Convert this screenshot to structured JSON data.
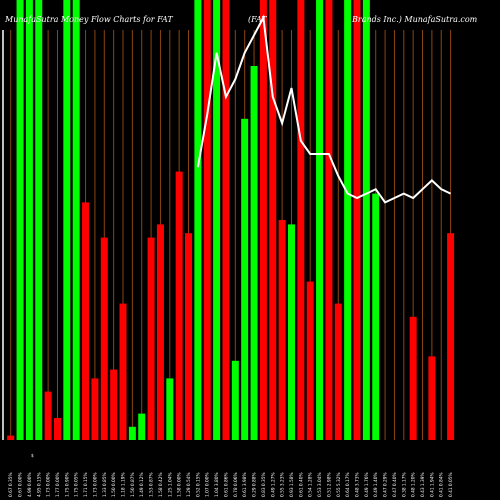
{
  "chart_data": {
    "type": "bar",
    "title_left": "MunafaSutra  Money Flow  Charts for FAT",
    "title_mid": "(FAT",
    "title_right": "Brands Inc.) MunafaSutra.com",
    "xlabel": "",
    "ylabel": "",
    "grid": "vertical brown lines between bars",
    "colors": {
      "background": "#000000",
      "up": "#00ff00",
      "down": "#ff0000",
      "price_line": "#ffffff",
      "grid": "#8b4513"
    },
    "value_scale": [
      0,
      100
    ],
    "tick_labels": [
      "0.67 0.35%",
      "0.67 0.00%",
      "4.99 0.00%",
      "4.95 0.15%",
      "1.73 0.00%",
      "1.77 0.00%",
      "1.75 0.90%",
      "1.75 0.05%",
      "1.71 0.15%",
      "1.73 0.00%",
      "1.33 0.85%",
      "1.50 0.00%",
      "1.18 1.19%",
      "1.50 0.87%",
      "1.49 0.12%",
      "1.53 0.87%",
      "1.58 0.42%",
      "1.25 1.04%",
      "1.58 0.00%",
      "1.29 0.54%",
      "0.52 0.15%",
      "1.07 0.00%",
      "1.04 3.80%",
      "0.61 0.86%",
      "0.78 0.06%",
      "0.61 3.98%",
      "0.29 0.88%",
      "0.83 0.35%",
      "0.49 1.27%",
      "0.55 3.23%",
      "0.93 1.58%",
      "0.61 0.40%",
      "0.54 1.28%",
      "0.53 3.04%",
      "0.51 2.98%",
      "0.55 5.32%",
      "0.64 0.17%",
      "0.48 3.73%",
      "0.49 1.76%",
      "0.49 1.40%",
      "0.47 0.29%",
      "0.47 0.40%",
      "0.38 1.17%",
      "0.48 1.20%",
      "0.43 1.39%",
      "0.41 1.94%",
      "0.41 0.84%",
      "0.41 0.05%"
    ],
    "series": [
      {
        "values": [
          1,
          100,
          100,
          100,
          11,
          5,
          100,
          100,
          54,
          14,
          46,
          16,
          31,
          3,
          6,
          46,
          49,
          14,
          61,
          47,
          100,
          100,
          100,
          100,
          18,
          73,
          85,
          100,
          100,
          50,
          49,
          100,
          36,
          100,
          100,
          31,
          100,
          100,
          100,
          56,
          0,
          0,
          0,
          28,
          0,
          19,
          0,
          47
        ],
        "colors": [
          "down",
          "up",
          "up",
          "up",
          "down",
          "down",
          "up",
          "up",
          "down",
          "down",
          "down",
          "down",
          "down",
          "up",
          "up",
          "down",
          "down",
          "up",
          "down",
          "down",
          "up",
          "down",
          "up",
          "down",
          "up",
          "up",
          "up",
          "down",
          "down",
          "down",
          "up",
          "down",
          "down",
          "up",
          "down",
          "down",
          "up",
          "down",
          "up",
          "up",
          "up",
          "down",
          "up",
          "down",
          "up",
          "down",
          "up",
          "down"
        ]
      }
    ],
    "price_line": {
      "values": [
        null,
        null,
        null,
        null,
        null,
        null,
        null,
        null,
        null,
        null,
        null,
        null,
        null,
        null,
        null,
        null,
        null,
        null,
        null,
        null,
        62,
        74,
        88,
        78,
        82,
        88,
        92,
        96,
        78,
        72,
        80,
        68,
        65,
        65,
        65,
        60,
        56,
        55,
        56,
        57,
        54,
        55,
        56,
        55,
        57,
        59,
        57,
        56
      ],
      "y_range": [
        0,
        100
      ]
    },
    "annotations": [
      "$"
    ]
  }
}
